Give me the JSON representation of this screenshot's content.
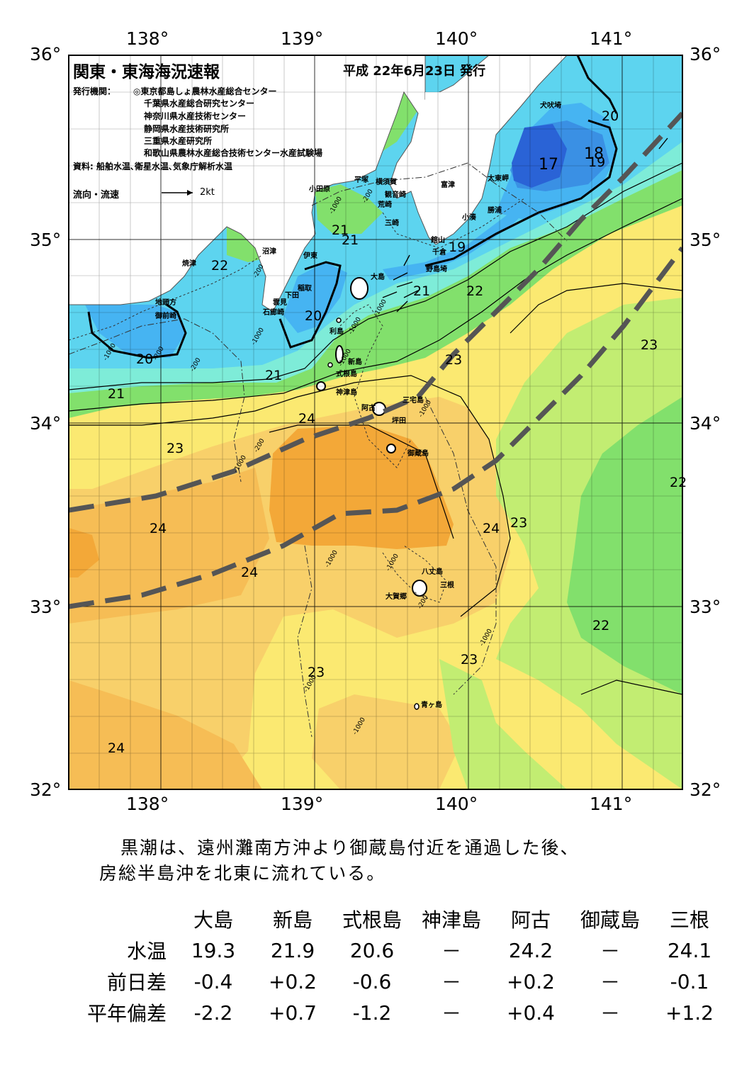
{
  "header": {
    "title": "関東・東海海況速報",
    "date": "平成 22年6月23日 発行",
    "issuer_label": "発行機関：",
    "issuers": [
      "◎東京都島しょ農林水産総合センター",
      "千葉県水産総合研究センター",
      "神奈川県水産技術センター",
      "静岡県水産技術研究所",
      "三重県水産研究所",
      "和歌山県農林水産総合技術センター水産試験場"
    ],
    "source": "資料: 船舶水温､衛星水温､気象庁解析水温",
    "legend_label": "流向・流速",
    "legend_speed": "2kt"
  },
  "axes": {
    "lon_labels": [
      "138°",
      "139°",
      "140°",
      "141°"
    ],
    "lat_labels": [
      "36°",
      "35°",
      "34°",
      "33°",
      "32°"
    ]
  },
  "place_names": [
    "犬吠埼",
    "太東岬",
    "勝浦",
    "小湊",
    "富津",
    "横須賀",
    "観音崎",
    "平塚",
    "小田原",
    "荒崎",
    "三崎",
    "館山",
    "千倉",
    "野島埼",
    "大島",
    "沼津",
    "伊東",
    "焼津",
    "稲取",
    "下田",
    "雲見",
    "石廊崎",
    "地頭方",
    "御前崎",
    "利島",
    "新島",
    "式根島",
    "神津島",
    "三宅島",
    "阿古",
    "坪田",
    "御蔵島",
    "八丈島",
    "三根",
    "大賀郷",
    "青ヶ島"
  ],
  "isotherm_labels": [
    "20",
    "17",
    "18",
    "19",
    "22",
    "21",
    "19",
    "21",
    "22",
    "21",
    "20",
    "20",
    "21",
    "21",
    "23",
    "24",
    "23",
    "23",
    "24",
    "24",
    "23",
    "24",
    "22",
    "22",
    "23",
    "23",
    "24"
  ],
  "depth_labels": [
    "-200",
    "-1000",
    "-200",
    "-1000",
    "-200",
    "-1000",
    "-200",
    "-1000",
    "-1000",
    "-1000",
    "-200",
    "-1000",
    "-1000",
    "-1000",
    "-1000",
    "-1000",
    "-200",
    "-1000",
    "-1000"
  ],
  "summary": [
    "黒潮は、遠州灘南方沖より御蔵島付近を通過した後、",
    "房総半島沖を北東に流れている。"
  ],
  "table": {
    "columns": [
      "大島",
      "新島",
      "式根島",
      "神津島",
      "阿古",
      "御蔵島",
      "三根"
    ],
    "rows": [
      {
        "label": "水温",
        "values": [
          "19.3",
          "21.9",
          "20.6",
          "－",
          "24.2",
          "－",
          "24.1"
        ]
      },
      {
        "label": "前日差",
        "values": [
          "-0.4",
          "+0.2",
          "-0.6",
          "－",
          "+0.2",
          "－",
          "-0.1"
        ]
      },
      {
        "label": "平年偏差",
        "values": [
          "-2.2",
          "+0.7",
          "-1.2",
          "－",
          "+0.4",
          "－",
          "+1.2"
        ]
      }
    ]
  },
  "colors": {
    "t17": "#2a63d6",
    "t19": "#46b4f2",
    "t20": "#5dd4ef",
    "t21": "#7eecd8",
    "t22": "#82e06c",
    "t23": "#c2ed72",
    "t24": "#fbe971",
    "t24h": "#f8d06a",
    "t25": "#f6bd55",
    "t26": "#f3a838",
    "land": "#ffffff",
    "kuroshio": "#555555"
  }
}
